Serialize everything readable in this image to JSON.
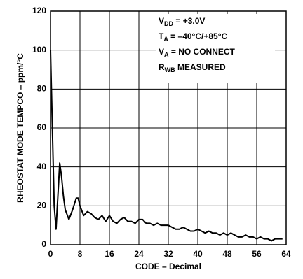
{
  "chart_data": {
    "type": "line",
    "xlabel": "CODE – Decimal",
    "ylabel": "RHEOSTAT MODE TEMPCO – ppm/°C",
    "annotations": [
      {
        "main": "V",
        "sub": "DD",
        "rest": " = +3.0V"
      },
      {
        "main": "T",
        "sub": "A",
        "rest": " = –40°C/+85°C"
      },
      {
        "main": "V",
        "sub": "A",
        "rest": " = NO CONNECT"
      },
      {
        "main": "R",
        "sub": "WB",
        "rest": " MEASURED"
      }
    ],
    "x": [
      0,
      0.5,
      1,
      1.5,
      2,
      2.5,
      3,
      3.5,
      4,
      5,
      6,
      7,
      7.5,
      8,
      9,
      10,
      11,
      12,
      13,
      14,
      15,
      16,
      17,
      18,
      19,
      20,
      21,
      22,
      23,
      24,
      25,
      26,
      27,
      28,
      29,
      30,
      31,
      32,
      33,
      34,
      35,
      36,
      37,
      38,
      39,
      40,
      41,
      42,
      43,
      44,
      45,
      46,
      47,
      48,
      49,
      50,
      51,
      52,
      53,
      54,
      55,
      56,
      57,
      58,
      59,
      60,
      61,
      62,
      63
    ],
    "values": [
      100,
      60,
      20,
      8,
      25,
      42,
      35,
      25,
      18,
      13,
      18,
      24,
      24,
      20,
      15,
      17,
      16,
      14,
      13,
      15,
      12,
      15,
      12,
      11,
      13,
      14,
      12,
      12,
      11,
      13,
      13,
      11,
      11,
      10,
      11,
      10,
      10,
      10,
      9,
      8,
      8,
      9,
      8,
      7,
      7,
      8,
      7,
      6,
      7,
      6,
      6,
      5,
      6,
      5,
      6,
      5,
      4,
      4,
      5,
      4,
      4,
      3,
      4,
      3,
      3,
      2,
      3,
      3,
      3
    ],
    "color": "#000000",
    "xlim": [
      0,
      64
    ],
    "xticks": [
      0,
      8,
      16,
      24,
      32,
      40,
      48,
      56,
      64
    ],
    "ylim": [
      0,
      120
    ],
    "yticks": [
      0,
      20,
      40,
      60,
      80,
      100,
      120
    ],
    "grid": true
  }
}
